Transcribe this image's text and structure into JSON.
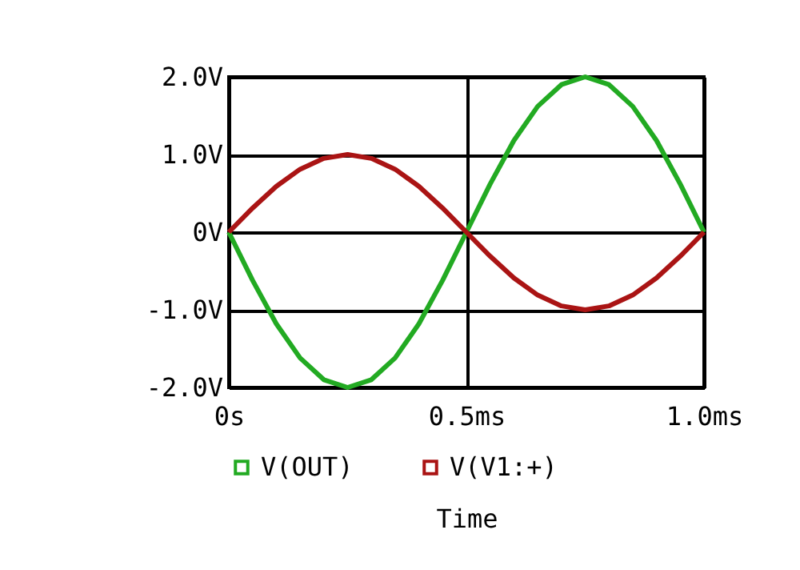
{
  "chart_data": {
    "type": "line",
    "xlabel": "Time",
    "legend": "bottom",
    "grid": true,
    "x": [
      0,
      0.05,
      0.1,
      0.15,
      0.2,
      0.25,
      0.3,
      0.35,
      0.4,
      0.45,
      0.5,
      0.55,
      0.6,
      0.65,
      0.7,
      0.75,
      0.8,
      0.85,
      0.9,
      0.95,
      1.0
    ],
    "xlim": [
      0,
      1.0
    ],
    "xticks": [
      {
        "value": 0,
        "label": "0s"
      },
      {
        "value": 0.5,
        "label": "0.5ms"
      },
      {
        "value": 1.0,
        "label": "1.0ms"
      }
    ],
    "ylim": [
      -2.0,
      2.0
    ],
    "yticks": [
      {
        "value": -2,
        "label": "-2.0V"
      },
      {
        "value": -1,
        "label": "-1.0V"
      },
      {
        "value": 0,
        "label": "0V"
      },
      {
        "value": 1,
        "label": "1.0V"
      },
      {
        "value": 2,
        "label": "2.0V"
      }
    ],
    "series": [
      {
        "name": "V(OUT)",
        "color": "#22aa22",
        "values": [
          0,
          -0.62,
          -1.18,
          -1.62,
          -1.9,
          -2.0,
          -1.9,
          -1.62,
          -1.18,
          -0.62,
          0,
          0.62,
          1.18,
          1.62,
          1.9,
          2.0,
          1.9,
          1.62,
          1.18,
          0.62,
          0
        ]
      },
      {
        "name": "V(V1:+)",
        "color": "#aa1414",
        "values": [
          0,
          0.31,
          0.59,
          0.81,
          0.95,
          1.0,
          0.95,
          0.81,
          0.59,
          0.31,
          0,
          -0.31,
          -0.59,
          -0.81,
          -0.95,
          -1.0,
          -0.95,
          -0.81,
          -0.59,
          -0.31,
          0
        ]
      }
    ]
  }
}
